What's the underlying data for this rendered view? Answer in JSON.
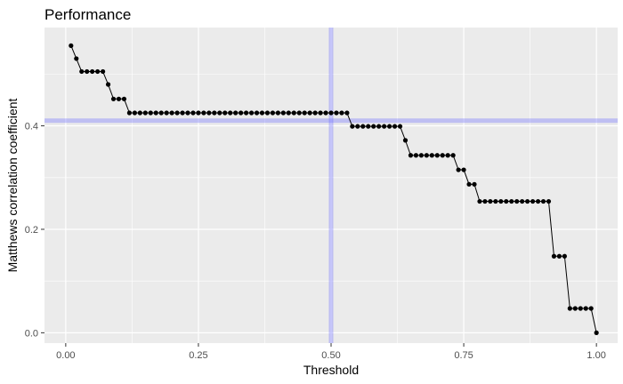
{
  "chart_data": {
    "type": "line",
    "title": "Performance",
    "xlabel": "Threshold",
    "ylabel": "Matthews correlation coefficient",
    "xlim": [
      -0.04,
      1.04
    ],
    "ylim": [
      -0.02,
      0.59
    ],
    "x_ticks": [
      0.0,
      0.25,
      0.5,
      0.75,
      1.0
    ],
    "x_tick_labels": [
      "0.00",
      "0.25",
      "0.50",
      "0.75",
      "1.00"
    ],
    "y_ticks": [
      0.0,
      0.2,
      0.4
    ],
    "y_tick_labels": [
      "0.0",
      "0.2",
      "0.4"
    ],
    "grid": true,
    "panel_background": "#ebebeb",
    "line_color": "#000000",
    "reference_lines": {
      "color": "#6b6bff",
      "opacity": 0.35,
      "vertical_x": 0.5,
      "horizontal_y": 0.41
    },
    "series": [
      {
        "x": [
          0.01,
          0.02,
          0.03,
          0.04,
          0.05,
          0.06,
          0.07,
          0.08,
          0.09,
          0.1,
          0.11,
          0.12,
          0.13,
          0.14,
          0.15,
          0.16,
          0.17,
          0.18,
          0.19,
          0.2,
          0.21,
          0.22,
          0.23,
          0.24,
          0.25,
          0.26,
          0.27,
          0.28,
          0.29,
          0.3,
          0.31,
          0.32,
          0.33,
          0.34,
          0.35,
          0.36,
          0.37,
          0.38,
          0.39,
          0.4,
          0.41,
          0.42,
          0.43,
          0.44,
          0.45,
          0.46,
          0.47,
          0.48,
          0.49,
          0.5,
          0.51,
          0.52,
          0.53,
          0.54,
          0.55,
          0.56,
          0.57,
          0.58,
          0.59,
          0.6,
          0.61,
          0.62,
          0.63,
          0.64,
          0.65,
          0.66,
          0.67,
          0.68,
          0.69,
          0.7,
          0.71,
          0.72,
          0.73,
          0.74,
          0.75,
          0.76,
          0.77,
          0.78,
          0.79,
          0.8,
          0.81,
          0.82,
          0.83,
          0.84,
          0.85,
          0.86,
          0.87,
          0.88,
          0.89,
          0.9,
          0.91,
          0.92,
          0.93,
          0.94,
          0.95,
          0.96,
          0.97,
          0.98,
          0.99,
          1.0
        ],
        "y": [
          0.555,
          0.53,
          0.505,
          0.505,
          0.505,
          0.505,
          0.505,
          0.48,
          0.452,
          0.452,
          0.452,
          0.425,
          0.425,
          0.425,
          0.425,
          0.425,
          0.425,
          0.425,
          0.425,
          0.425,
          0.425,
          0.425,
          0.425,
          0.425,
          0.425,
          0.425,
          0.425,
          0.425,
          0.425,
          0.425,
          0.425,
          0.425,
          0.425,
          0.425,
          0.425,
          0.425,
          0.425,
          0.425,
          0.425,
          0.425,
          0.425,
          0.425,
          0.425,
          0.425,
          0.425,
          0.425,
          0.425,
          0.425,
          0.425,
          0.425,
          0.425,
          0.425,
          0.425,
          0.399,
          0.399,
          0.399,
          0.399,
          0.399,
          0.399,
          0.399,
          0.399,
          0.399,
          0.399,
          0.372,
          0.343,
          0.343,
          0.343,
          0.343,
          0.343,
          0.343,
          0.343,
          0.343,
          0.343,
          0.315,
          0.315,
          0.287,
          0.287,
          0.254,
          0.254,
          0.254,
          0.254,
          0.254,
          0.254,
          0.254,
          0.254,
          0.254,
          0.254,
          0.254,
          0.254,
          0.254,
          0.254,
          0.148,
          0.148,
          0.148,
          0.047,
          0.047,
          0.047,
          0.047,
          0.047,
          0.0
        ]
      }
    ]
  }
}
